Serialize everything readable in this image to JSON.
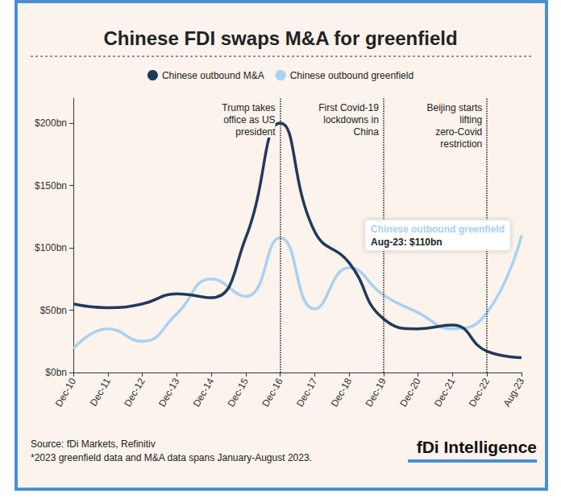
{
  "chart_data": {
    "type": "line",
    "title": "Chinese FDI swaps M&A for greenfield",
    "categories": [
      "Dec-10",
      "Dec-11",
      "Dec-12",
      "Dec-13",
      "Dec-14",
      "Dec-15",
      "Dec-16",
      "Dec-17",
      "Dec-18",
      "Dec-19",
      "Dec-20",
      "Dec-21",
      "Dec-22",
      "Aug-23"
    ],
    "series": [
      {
        "name": "Chinese outbound M&A",
        "color": "#213a5c",
        "values": [
          55,
          52,
          55,
          63,
          60,
          108,
          200,
          113,
          88,
          43,
          35,
          38,
          17,
          12
        ]
      },
      {
        "name": "Chinese outbound greenfield",
        "color": "#a9d1f2",
        "values": [
          19,
          35,
          25,
          47,
          75,
          61,
          108,
          51,
          84,
          62,
          48,
          35,
          48,
          110
        ]
      }
    ],
    "ylim": [
      0,
      220
    ],
    "yticks": [
      {
        "value": 0,
        "label": "$0bn"
      },
      {
        "value": 50,
        "label": "$50bn"
      },
      {
        "value": 100,
        "label": "$100bn"
      },
      {
        "value": 150,
        "label": "$150bn"
      },
      {
        "value": 200,
        "label": "$200bn"
      }
    ],
    "grid": false,
    "legend": "top",
    "events": [
      {
        "category": "Dec-16",
        "text": "Trump takes\noffice as US\npresident"
      },
      {
        "category": "Dec-19",
        "text": "First Covid-19\nlockdowns in\nChina"
      },
      {
        "category": "Dec-22",
        "text": "Beijing starts\nlifting\nzero-Covid\nrestriction"
      }
    ],
    "callout": {
      "series": "Chinese outbound greenfield",
      "category": "Aug-23",
      "value": 110,
      "title": "Chinese outbound greenfield",
      "text": "Aug-23: $110bn"
    },
    "source": "Source: fDi Markets, Refinitiv",
    "note": "*2023 greenfield data and M&A data spans January-August 2023.",
    "logo": "fDi Intelligence"
  }
}
